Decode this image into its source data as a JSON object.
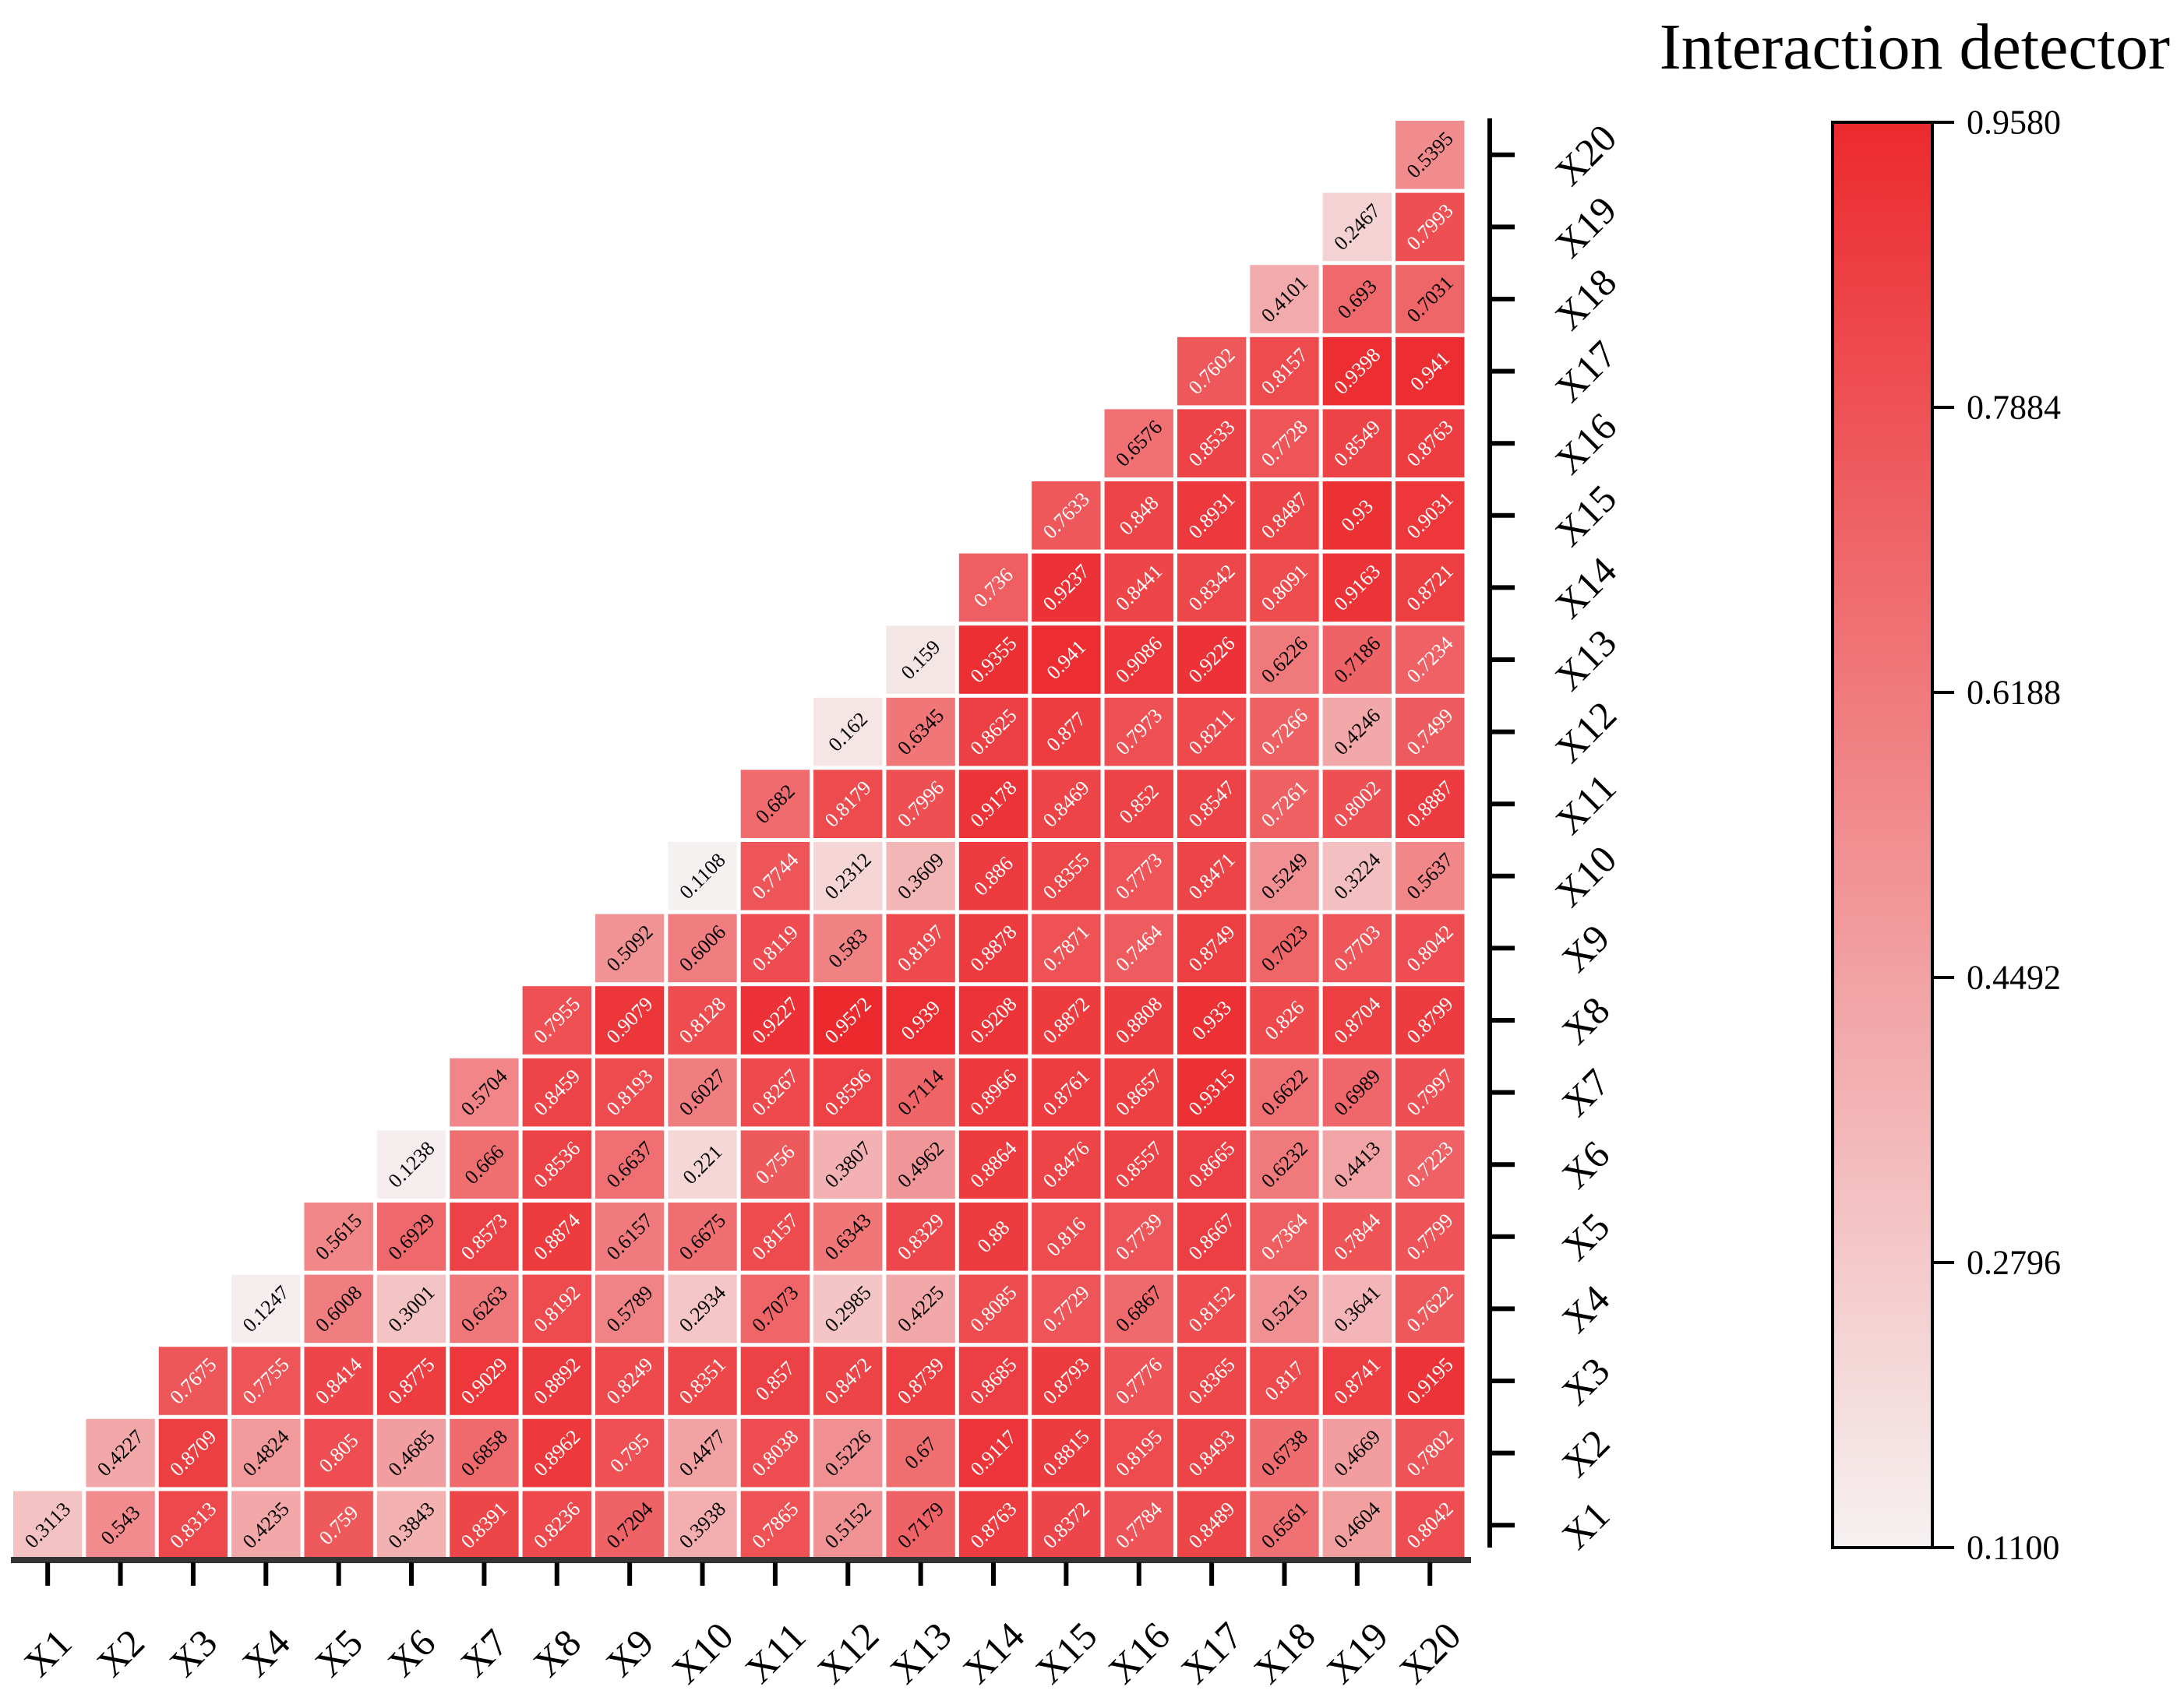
{
  "chart_data": {
    "type": "heatmap",
    "title": "Interaction detector",
    "shape": "lower-triangle",
    "labels": [
      "X1",
      "X2",
      "X3",
      "X4",
      "X5",
      "X6",
      "X7",
      "X8",
      "X9",
      "X10",
      "X11",
      "X12",
      "X13",
      "X14",
      "X15",
      "X16",
      "X17",
      "X18",
      "X19",
      "X20"
    ],
    "colorbar": {
      "min": 0.11,
      "max": 0.958,
      "ticks": [
        "0.1100",
        "0.2796",
        "0.4492",
        "0.6188",
        "0.7884",
        "0.9580"
      ],
      "color_low": "#f6f1f1",
      "color_high": "#ec2a2e"
    },
    "columns": [
      {
        "x": "X1",
        "values": [
          "0.3113"
        ]
      },
      {
        "x": "X2",
        "values": [
          "0.543",
          "0.4227"
        ]
      },
      {
        "x": "X3",
        "values": [
          "0.8313",
          "0.8709",
          "0.7675"
        ]
      },
      {
        "x": "X4",
        "values": [
          "0.4235",
          "0.4824",
          "0.7755",
          "0.1247"
        ]
      },
      {
        "x": "X5",
        "values": [
          "0.759",
          "0.805",
          "0.8414",
          "0.6008",
          "0.5615"
        ]
      },
      {
        "x": "X6",
        "values": [
          "0.3843",
          "0.4685",
          "0.8775",
          "0.3001",
          "0.6929",
          "0.1238"
        ]
      },
      {
        "x": "X7",
        "values": [
          "0.8391",
          "0.6858",
          "0.9029",
          "0.6263",
          "0.8573",
          "0.666",
          "0.5704"
        ]
      },
      {
        "x": "X8",
        "values": [
          "0.8236",
          "0.8962",
          "0.8892",
          "0.8192",
          "0.8874",
          "0.8536",
          "0.8459",
          "0.7955"
        ]
      },
      {
        "x": "X9",
        "values": [
          "0.7204",
          "0.795",
          "0.8249",
          "0.5789",
          "0.6157",
          "0.6637",
          "0.8193",
          "0.9079",
          "0.5092"
        ]
      },
      {
        "x": "X10",
        "values": [
          "0.3938",
          "0.4477",
          "0.8351",
          "0.2934",
          "0.6675",
          "0.221",
          "0.6027",
          "0.8128",
          "0.6006",
          "0.1108"
        ]
      },
      {
        "x": "X11",
        "values": [
          "0.7865",
          "0.8038",
          "0.857",
          "0.7073",
          "0.8157",
          "0.756",
          "0.8267",
          "0.9227",
          "0.8119",
          "0.7744",
          "0.682"
        ]
      },
      {
        "x": "X12",
        "values": [
          "0.5152",
          "0.5226",
          "0.8472",
          "0.2985",
          "0.6343",
          "0.3807",
          "0.8596",
          "0.9572",
          "0.583",
          "0.2312",
          "0.8179",
          "0.162"
        ]
      },
      {
        "x": "X13",
        "values": [
          "0.7179",
          "0.67",
          "0.8739",
          "0.4225",
          "0.8329",
          "0.4962",
          "0.7114",
          "0.939",
          "0.8197",
          "0.3609",
          "0.7996",
          "0.6345",
          "0.159"
        ]
      },
      {
        "x": "X14",
        "values": [
          "0.8763",
          "0.9117",
          "0.8685",
          "0.8085",
          "0.88",
          "0.8864",
          "0.8966",
          "0.9208",
          "0.8878",
          "0.886",
          "0.9178",
          "0.8625",
          "0.9355",
          "0.736"
        ]
      },
      {
        "x": "X15",
        "values": [
          "0.8372",
          "0.8815",
          "0.8793",
          "0.7729",
          "0.816",
          "0.8476",
          "0.8761",
          "0.8872",
          "0.7871",
          "0.8355",
          "0.8469",
          "0.877",
          "0.941",
          "0.9237",
          "0.7633"
        ]
      },
      {
        "x": "X16",
        "values": [
          "0.7784",
          "0.8195",
          "0.7776",
          "0.6867",
          "0.7739",
          "0.8557",
          "0.8657",
          "0.8808",
          "0.7464",
          "0.7773",
          "0.852",
          "0.7973",
          "0.9086",
          "0.8441",
          "0.848",
          "0.6576"
        ]
      },
      {
        "x": "X17",
        "values": [
          "0.8489",
          "0.8493",
          "0.8365",
          "0.8152",
          "0.8667",
          "0.8665",
          "0.9315",
          "0.933",
          "0.8749",
          "0.8471",
          "0.8547",
          "0.8211",
          "0.9226",
          "0.8342",
          "0.8931",
          "0.8533",
          "0.7602"
        ]
      },
      {
        "x": "X18",
        "values": [
          "0.6561",
          "0.6738",
          "0.817",
          "0.5215",
          "0.7364",
          "0.6232",
          "0.6622",
          "0.826",
          "0.7023",
          "0.5249",
          "0.7261",
          "0.7266",
          "0.6226",
          "0.8091",
          "0.8487",
          "0.7728",
          "0.8157",
          "0.4101"
        ]
      },
      {
        "x": "X19",
        "values": [
          "0.4604",
          "0.4669",
          "0.8741",
          "0.3641",
          "0.7844",
          "0.4413",
          "0.6989",
          "0.8704",
          "0.7703",
          "0.3224",
          "0.8002",
          "0.4246",
          "0.7186",
          "0.9163",
          "0.93",
          "0.8549",
          "0.9398",
          "0.693",
          "0.2467"
        ]
      },
      {
        "x": "X20",
        "values": [
          "0.8042",
          "0.7802",
          "0.9195",
          "0.7622",
          "0.7799",
          "0.7223",
          "0.7997",
          "0.8799",
          "0.8042",
          "0.5637",
          "0.8887",
          "0.7499",
          "0.7234",
          "0.8721",
          "0.9031",
          "0.8763",
          "0.941",
          "0.7031",
          "0.7993",
          "0.5395"
        ]
      }
    ]
  }
}
